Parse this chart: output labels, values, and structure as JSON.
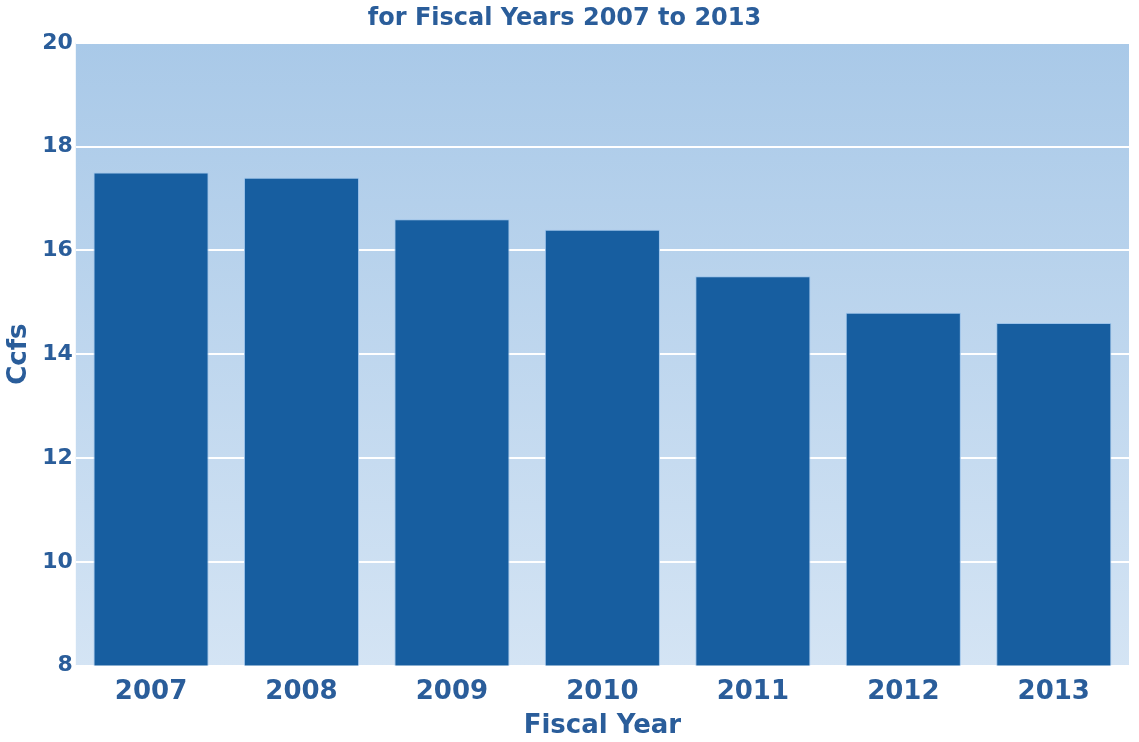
{
  "chart_data": {
    "type": "bar",
    "title": "for Fiscal Years 2007 to 2013",
    "xlabel": "Fiscal Year",
    "ylabel": "Ccfs",
    "categories": [
      "2007",
      "2008",
      "2009",
      "2010",
      "2011",
      "2012",
      "2013"
    ],
    "values": [
      17.5,
      17.4,
      16.6,
      16.4,
      15.5,
      14.8,
      14.6
    ],
    "color": "#175ea0",
    "ylim": [
      8,
      20
    ],
    "yticks": [
      8,
      10,
      12,
      14,
      16,
      18,
      20
    ],
    "grid": "y"
  }
}
